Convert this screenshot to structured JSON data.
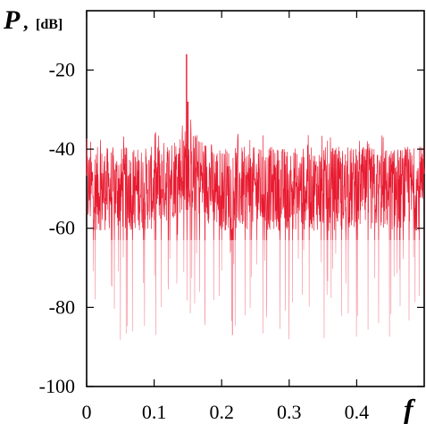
{
  "chart_data": {
    "type": "line",
    "title": "",
    "ylabel_symbol": "P",
    "ylabel_separator": ",",
    "ylabel_unit": "[dB]",
    "xlabel_symbol": "f",
    "xlim": [
      0,
      0.5
    ],
    "ylim": [
      -100,
      -5
    ],
    "x_ticks": [
      0,
      0.1,
      0.2,
      0.3,
      0.4
    ],
    "x_tick_labels": [
      "0",
      "0.1",
      "0.2",
      "0.3",
      "0.4"
    ],
    "y_ticks": [
      -20,
      -40,
      -60,
      -80,
      -100
    ],
    "y_tick_labels": [
      "-20",
      "-40",
      "-60",
      "-80",
      "-100"
    ],
    "grid": false,
    "legend": "none",
    "series": [
      {
        "color": "#e8182e",
        "envelope_color": "#f59aa6",
        "noise_floor_mean": -50,
        "noise_upper_typical": -40,
        "noise_lower_typical": -65,
        "deep_dips_min": -91,
        "peaks": [
          {
            "x": 0.148,
            "y": -16
          },
          {
            "x": 0.15,
            "y": -28
          }
        ]
      }
    ]
  }
}
